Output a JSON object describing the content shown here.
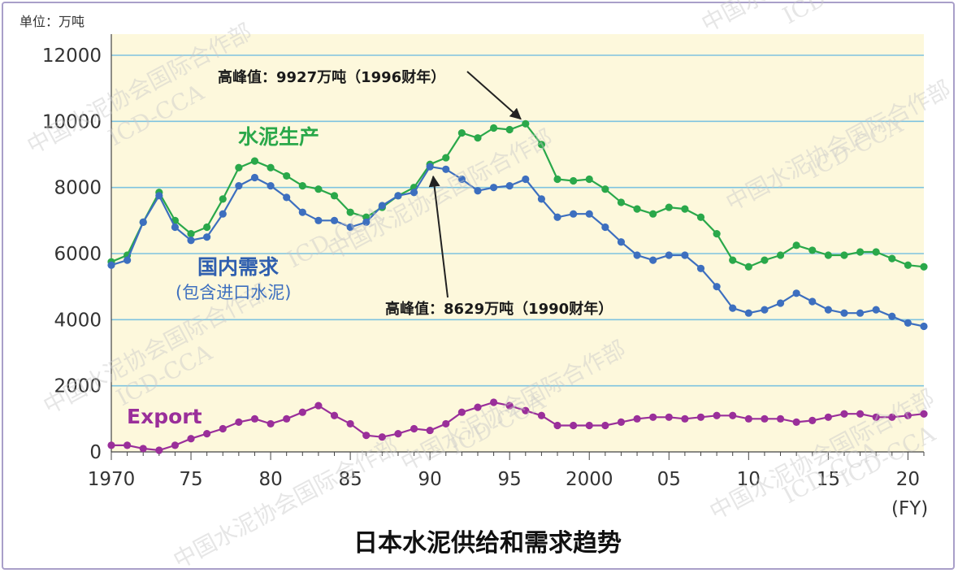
{
  "chart_data": {
    "type": "line",
    "title": "日本水泥供给和需求趋势",
    "unit_label": "单位：万吨",
    "x_unit": "(FY)",
    "xlim": [
      1970,
      2021
    ],
    "ylim": [
      0,
      12000
    ],
    "y_ticks": [
      0,
      2000,
      4000,
      6000,
      8000,
      10000,
      12000
    ],
    "x_ticks": [
      {
        "value": 1970,
        "label": "1970"
      },
      {
        "value": 1975,
        "label": "75"
      },
      {
        "value": 1980,
        "label": "80"
      },
      {
        "value": 1985,
        "label": "85"
      },
      {
        "value": 1990,
        "label": "90"
      },
      {
        "value": 1995,
        "label": "95"
      },
      {
        "value": 2000,
        "label": "2000"
      },
      {
        "value": 2005,
        "label": "05"
      },
      {
        "value": 2010,
        "label": "10"
      },
      {
        "value": 2015,
        "label": "15"
      },
      {
        "value": 2020,
        "label": "20"
      }
    ],
    "grid": "horizontal",
    "x": [
      1970,
      1971,
      1972,
      1973,
      1974,
      1975,
      1976,
      1977,
      1978,
      1979,
      1980,
      1981,
      1982,
      1983,
      1984,
      1985,
      1986,
      1987,
      1988,
      1989,
      1990,
      1991,
      1992,
      1993,
      1994,
      1995,
      1996,
      1997,
      1998,
      1999,
      2000,
      2001,
      2002,
      2003,
      2004,
      2005,
      2006,
      2007,
      2008,
      2009,
      2010,
      2011,
      2012,
      2013,
      2014,
      2015,
      2016,
      2017,
      2018,
      2019,
      2020,
      2021
    ],
    "series": [
      {
        "name": "水泥生产",
        "color": "#2aa84a",
        "values": [
          5750,
          5950,
          6950,
          7850,
          7000,
          6600,
          6800,
          7650,
          8600,
          8800,
          8600,
          8350,
          8050,
          7950,
          7750,
          7250,
          7100,
          7400,
          7750,
          8000,
          8700,
          8900,
          9650,
          9500,
          9800,
          9750,
          9927,
          9300,
          8250,
          8200,
          8250,
          7950,
          7550,
          7350,
          7200,
          7400,
          7350,
          7100,
          6600,
          5800,
          5600,
          5800,
          5950,
          6250,
          6100,
          5950,
          5950,
          6050,
          6050,
          5850,
          5650,
          5600
        ]
      },
      {
        "name": "国内需求",
        "sublabel": "(包含进口水泥)",
        "color": "#3d6fbf",
        "values": [
          5650,
          5800,
          6950,
          7750,
          6800,
          6400,
          6500,
          7200,
          8050,
          8300,
          8050,
          7700,
          7250,
          7000,
          7000,
          6800,
          6950,
          7450,
          7750,
          7850,
          8629,
          8550,
          8250,
          7900,
          8000,
          8050,
          8250,
          7650,
          7100,
          7200,
          7200,
          6800,
          6350,
          5950,
          5800,
          5950,
          5950,
          5550,
          5000,
          4350,
          4200,
          4300,
          4500,
          4800,
          4550,
          4300,
          4200,
          4200,
          4300,
          4100,
          3900,
          3800
        ]
      },
      {
        "name": "Export",
        "color": "#9a2f9a",
        "values": [
          200,
          200,
          100,
          50,
          200,
          400,
          550,
          700,
          900,
          1000,
          850,
          1000,
          1200,
          1400,
          1100,
          850,
          500,
          450,
          550,
          700,
          650,
          850,
          1200,
          1350,
          1500,
          1400,
          1250,
          1100,
          800,
          800,
          800,
          800,
          900,
          1000,
          1050,
          1050,
          1000,
          1050,
          1100,
          1100,
          1000,
          1000,
          1000,
          900,
          950,
          1050,
          1150,
          1150,
          1050,
          1050,
          1100,
          1150
        ]
      }
    ],
    "annotations": [
      {
        "text": "高峰值：9927万吨（1996财年）",
        "x": 1996,
        "y": 9927
      },
      {
        "text": "高峰值：8629万吨（1990财年）",
        "x": 1990,
        "y": 8629
      }
    ],
    "watermark": [
      "中国水泥协会国际合作部",
      "ICD-CCA"
    ]
  },
  "colors": {
    "plot_bg": "#fdf8dc",
    "grid": "#7ec3e0",
    "axis": "#444444"
  }
}
